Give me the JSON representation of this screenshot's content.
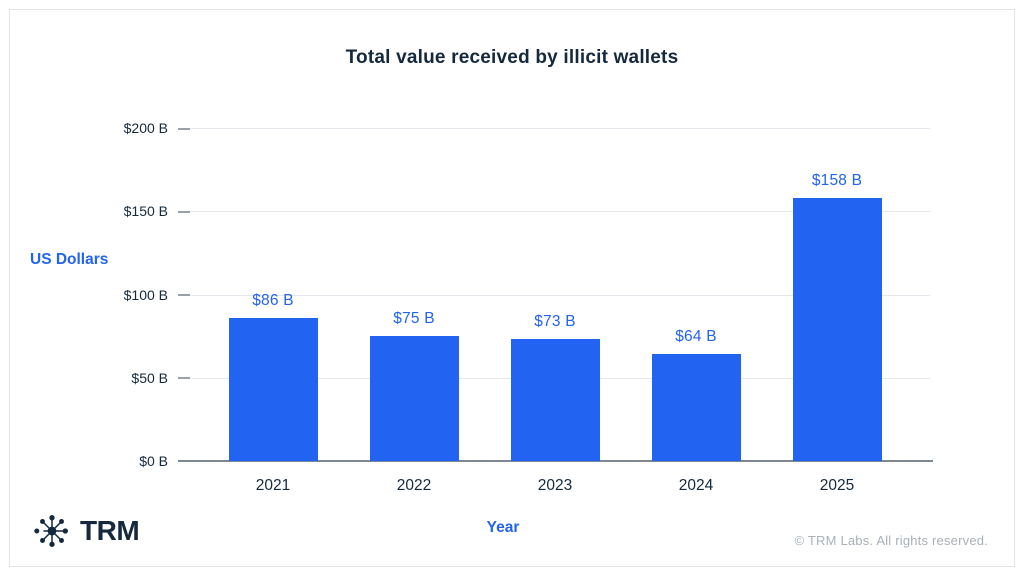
{
  "chart_data": {
    "type": "bar",
    "title": "Total value received by illicit wallets",
    "xlabel": "Year",
    "ylabel": "US Dollars",
    "categories": [
      "2021",
      "2022",
      "2023",
      "2024",
      "2025"
    ],
    "values": [
      86,
      75,
      73,
      64,
      158
    ],
    "value_labels": [
      "$86 B",
      "$75 B",
      "$73 B",
      "$64 B",
      "$158 B"
    ],
    "ylim": [
      0,
      200
    ],
    "yticks": [
      0,
      50,
      100,
      150,
      200
    ],
    "ytick_labels": [
      "$0 B",
      "$50 B",
      "$100 B",
      "$150 B",
      "$200 B"
    ],
    "grid": true,
    "legend": "none",
    "bar_color": "#2363f1",
    "value_label_color": "#2363f1",
    "axis_text_color": "#14293d"
  },
  "footer": {
    "brand": "TRM",
    "copyright": "© TRM Labs. All rights reserved."
  },
  "colors": {
    "accent_blue": "#2363f1",
    "navy_text": "#14293d",
    "gridline": "#e4e7eb",
    "axis_line": "#7e8892",
    "muted_gray": "#a9b0b8"
  }
}
